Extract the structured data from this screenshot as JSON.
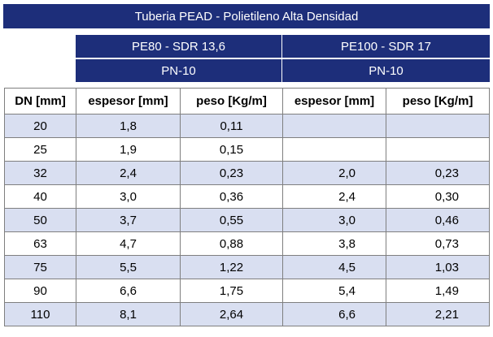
{
  "title": "Tuberia PEAD - Polietileno Alta Densidad",
  "groups": [
    {
      "name": "PE80 - SDR 13,6",
      "pn": "PN-10"
    },
    {
      "name": "PE100 - SDR 17",
      "pn": "PN-10"
    }
  ],
  "columns": [
    "DN [mm]",
    "espesor [mm]",
    "peso [Kg/m]",
    "espesor [mm]",
    "peso [Kg/m]"
  ],
  "rows": [
    [
      "20",
      "1,8",
      "0,11",
      "",
      ""
    ],
    [
      "25",
      "1,9",
      "0,15",
      "",
      ""
    ],
    [
      "32",
      "2,4",
      "0,23",
      "2,0",
      "0,23"
    ],
    [
      "40",
      "3,0",
      "0,36",
      "2,4",
      "0,30"
    ],
    [
      "50",
      "3,7",
      "0,55",
      "3,0",
      "0,46"
    ],
    [
      "63",
      "4,7",
      "0,88",
      "3,8",
      "0,73"
    ],
    [
      "75",
      "5,5",
      "1,22",
      "4,5",
      "1,03"
    ],
    [
      "90",
      "6,6",
      "1,75",
      "5,4",
      "1,49"
    ],
    [
      "110",
      "8,1",
      "2,64",
      "6,6",
      "2,21"
    ]
  ],
  "colors": {
    "header_bg": "#1d2e7a",
    "alt_row_bg": "#d9dff1",
    "grid": "#7f7f7f"
  }
}
